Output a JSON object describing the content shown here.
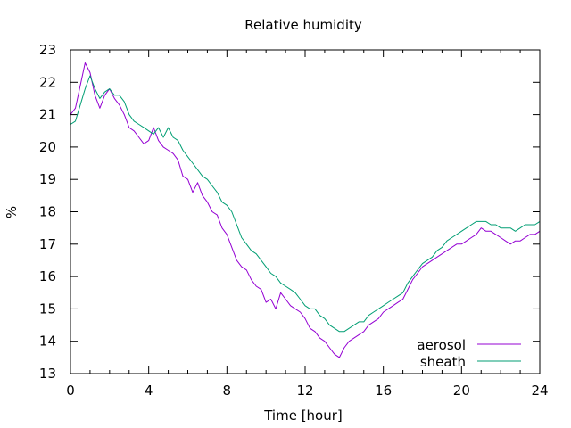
{
  "chart_data": {
    "type": "line",
    "title": "Relative humidity",
    "xlabel": "Time [hour]",
    "ylabel": "%",
    "xlim": [
      0,
      24
    ],
    "ylim": [
      13,
      23
    ],
    "xticks": [
      0,
      4,
      8,
      12,
      16,
      20,
      24
    ],
    "yticks": [
      13,
      14,
      15,
      16,
      17,
      18,
      19,
      20,
      21,
      22,
      23
    ],
    "grid": false,
    "legend_position": "bottom-right",
    "series": [
      {
        "name": "aerosol",
        "color": "#9400d3",
        "x": [
          0,
          0.25,
          0.5,
          0.75,
          1,
          1.25,
          1.5,
          1.75,
          2,
          2.25,
          2.5,
          2.75,
          3,
          3.25,
          3.5,
          3.75,
          4,
          4.25,
          4.5,
          4.75,
          5,
          5.25,
          5.5,
          5.75,
          6,
          6.25,
          6.5,
          6.75,
          7,
          7.25,
          7.5,
          7.75,
          8,
          8.25,
          8.5,
          8.75,
          9,
          9.25,
          9.5,
          9.75,
          10,
          10.25,
          10.5,
          10.75,
          11,
          11.25,
          11.5,
          11.75,
          12,
          12.25,
          12.5,
          12.75,
          13,
          13.25,
          13.5,
          13.75,
          14,
          14.25,
          14.5,
          14.75,
          15,
          15.25,
          15.5,
          15.75,
          16,
          16.25,
          16.5,
          16.75,
          17,
          17.25,
          17.5,
          17.75,
          18,
          18.25,
          18.5,
          18.75,
          19,
          19.25,
          19.5,
          19.75,
          20,
          20.25,
          20.5,
          20.75,
          21,
          21.25,
          21.5,
          21.75,
          22,
          22.25,
          22.5,
          22.75,
          23,
          23.25,
          23.5,
          23.75,
          24
        ],
        "y": [
          21.0,
          21.2,
          21.9,
          22.6,
          22.3,
          21.6,
          21.2,
          21.6,
          21.8,
          21.5,
          21.3,
          21.0,
          20.6,
          20.5,
          20.3,
          20.1,
          20.2,
          20.6,
          20.2,
          20.0,
          19.9,
          19.8,
          19.6,
          19.1,
          19.0,
          18.6,
          18.9,
          18.5,
          18.3,
          18.0,
          17.9,
          17.5,
          17.3,
          16.9,
          16.5,
          16.3,
          16.2,
          15.9,
          15.7,
          15.6,
          15.2,
          15.3,
          15.0,
          15.5,
          15.3,
          15.1,
          15.0,
          14.9,
          14.7,
          14.4,
          14.3,
          14.1,
          14.0,
          13.8,
          13.6,
          13.5,
          13.8,
          14.0,
          14.1,
          14.2,
          14.3,
          14.5,
          14.6,
          14.7,
          14.9,
          15.0,
          15.1,
          15.2,
          15.3,
          15.6,
          15.9,
          16.1,
          16.3,
          16.4,
          16.5,
          16.6,
          16.7,
          16.8,
          16.9,
          17.0,
          17.0,
          17.1,
          17.2,
          17.3,
          17.5,
          17.4,
          17.4,
          17.3,
          17.2,
          17.1,
          17.0,
          17.1,
          17.1,
          17.2,
          17.3,
          17.3,
          17.4
        ]
      },
      {
        "name": "sheath",
        "color": "#009e73",
        "x": [
          0,
          0.25,
          0.5,
          0.75,
          1,
          1.25,
          1.5,
          1.75,
          2,
          2.25,
          2.5,
          2.75,
          3,
          3.25,
          3.5,
          3.75,
          4,
          4.25,
          4.5,
          4.75,
          5,
          5.25,
          5.5,
          5.75,
          6,
          6.25,
          6.5,
          6.75,
          7,
          7.25,
          7.5,
          7.75,
          8,
          8.25,
          8.5,
          8.75,
          9,
          9.25,
          9.5,
          9.75,
          10,
          10.25,
          10.5,
          10.75,
          11,
          11.25,
          11.5,
          11.75,
          12,
          12.25,
          12.5,
          12.75,
          13,
          13.25,
          13.5,
          13.75,
          14,
          14.25,
          14.5,
          14.75,
          15,
          15.25,
          15.5,
          15.75,
          16,
          16.25,
          16.5,
          16.75,
          17,
          17.25,
          17.5,
          17.75,
          18,
          18.25,
          18.5,
          18.75,
          19,
          19.25,
          19.5,
          19.75,
          20,
          20.25,
          20.5,
          20.75,
          21,
          21.25,
          21.5,
          21.75,
          22,
          22.25,
          22.5,
          22.75,
          23,
          23.25,
          23.5,
          23.75,
          24
        ],
        "y": [
          20.7,
          20.8,
          21.3,
          21.8,
          22.2,
          21.8,
          21.5,
          21.7,
          21.8,
          21.6,
          21.6,
          21.4,
          21.0,
          20.8,
          20.7,
          20.6,
          20.5,
          20.4,
          20.6,
          20.3,
          20.6,
          20.3,
          20.2,
          19.9,
          19.7,
          19.5,
          19.3,
          19.1,
          19.0,
          18.8,
          18.6,
          18.3,
          18.2,
          18.0,
          17.6,
          17.2,
          17.0,
          16.8,
          16.7,
          16.5,
          16.3,
          16.1,
          16.0,
          15.8,
          15.7,
          15.6,
          15.5,
          15.3,
          15.1,
          15.0,
          15.0,
          14.8,
          14.7,
          14.5,
          14.4,
          14.3,
          14.3,
          14.4,
          14.5,
          14.6,
          14.6,
          14.8,
          14.9,
          15.0,
          15.1,
          15.2,
          15.3,
          15.4,
          15.5,
          15.8,
          16.0,
          16.2,
          16.4,
          16.5,
          16.6,
          16.8,
          16.9,
          17.1,
          17.2,
          17.3,
          17.4,
          17.5,
          17.6,
          17.7,
          17.7,
          17.7,
          17.6,
          17.6,
          17.5,
          17.5,
          17.5,
          17.4,
          17.5,
          17.6,
          17.6,
          17.6,
          17.7
        ]
      }
    ]
  }
}
